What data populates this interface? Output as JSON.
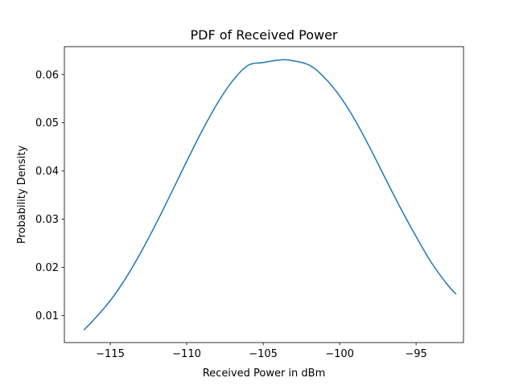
{
  "chart_data": {
    "type": "line",
    "title": "PDF of Received Power",
    "xlabel": "Received Power in dBm",
    "ylabel": "Probability Density",
    "xlim": [
      -118.0,
      -91.9
    ],
    "ylim": [
      0.0044,
      0.0658
    ],
    "xticks": [
      -115,
      -110,
      -105,
      -100,
      -95
    ],
    "xtick_labels": [
      "−115",
      "−110",
      "−105",
      "−100",
      "−95"
    ],
    "yticks": [
      0.01,
      0.02,
      0.03,
      0.04,
      0.05,
      0.06
    ],
    "ytick_labels": [
      "0.01",
      "0.02",
      "0.03",
      "0.04",
      "0.05",
      "0.06"
    ],
    "grid": false,
    "series": [
      {
        "color": "#1f77b4",
        "x": [
          -116.7,
          -116.0,
          -115.0,
          -114.0,
          -113.0,
          -112.0,
          -111.0,
          -110.0,
          -109.0,
          -108.0,
          -107.0,
          -106.0,
          -105.0,
          -104.0,
          -103.3,
          -102.0,
          -101.0,
          -100.0,
          -99.0,
          -98.0,
          -97.0,
          -96.0,
          -95.0,
          -94.0,
          -93.0,
          -92.4
        ],
        "y": [
          0.0071,
          0.0094,
          0.0131,
          0.0177,
          0.0231,
          0.0291,
          0.0355,
          0.042,
          0.0483,
          0.054,
          0.0587,
          0.0619,
          0.0625,
          0.063,
          0.063,
          0.062,
          0.0594,
          0.0556,
          0.0506,
          0.0447,
          0.0384,
          0.0322,
          0.0264,
          0.021,
          0.0166,
          0.0145
        ]
      }
    ]
  }
}
